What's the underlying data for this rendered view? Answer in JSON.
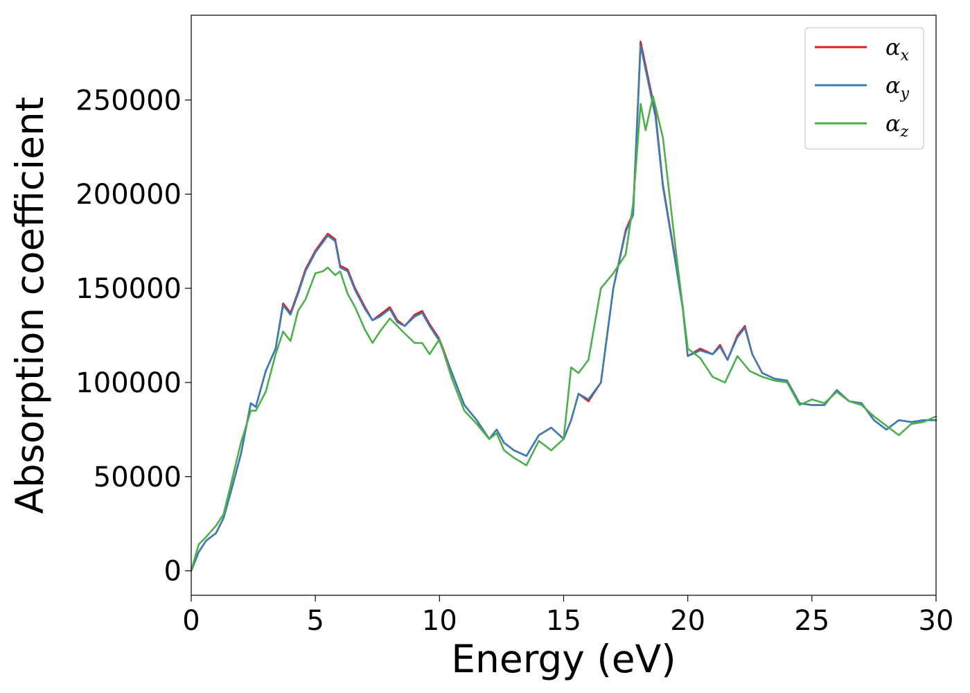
{
  "chart_data": {
    "type": "line",
    "xlabel": "Energy (eV)",
    "ylabel": "Absorption coefficient",
    "xlim": [
      0,
      30
    ],
    "ylim": [
      -13000,
      295000
    ],
    "xticks": [
      0,
      5,
      10,
      15,
      20,
      25,
      30
    ],
    "yticks": [
      0,
      50000,
      100000,
      150000,
      200000,
      250000
    ],
    "grid": false,
    "legend_position": "top-right",
    "series": [
      {
        "name": "αx",
        "legend_base": "α",
        "legend_sub": "x",
        "color": "#e41a1c",
        "x": [
          0,
          0.3,
          0.6,
          1.0,
          1.3,
          1.6,
          2.0,
          2.4,
          2.6,
          3.0,
          3.4,
          3.7,
          4.0,
          4.3,
          4.6,
          5.0,
          5.5,
          5.8,
          6.0,
          6.3,
          6.6,
          7.0,
          7.3,
          7.6,
          8.0,
          8.3,
          8.6,
          9.0,
          9.3,
          9.6,
          10.0,
          10.5,
          11.0,
          11.5,
          12.0,
          12.3,
          12.6,
          13.0,
          13.5,
          14.0,
          14.5,
          15.0,
          15.3,
          15.6,
          16.0,
          16.5,
          17.0,
          17.5,
          17.8,
          18.1,
          18.4,
          18.7,
          19.0,
          19.5,
          19.8,
          20.0,
          20.5,
          21.0,
          21.3,
          21.6,
          22.0,
          22.3,
          22.6,
          23.0,
          23.5,
          24.0,
          24.5,
          25.0,
          25.5,
          26.0,
          26.5,
          27.0,
          27.5,
          28.0,
          28.5,
          29.0,
          29.5,
          30.0
        ],
        "y": [
          0,
          10000,
          16000,
          20000,
          28000,
          42000,
          62000,
          89000,
          87000,
          106000,
          118000,
          142000,
          137000,
          148000,
          160000,
          170000,
          179000,
          176000,
          162000,
          160000,
          150000,
          140000,
          133000,
          136000,
          140000,
          133000,
          130000,
          136000,
          138000,
          131000,
          123000,
          105000,
          88000,
          80000,
          70000,
          75000,
          68000,
          64000,
          61000,
          72000,
          76000,
          70000,
          80000,
          94000,
          90000,
          100000,
          150000,
          181000,
          190000,
          281000,
          262000,
          243000,
          205000,
          165000,
          140000,
          114000,
          118000,
          115000,
          120000,
          112000,
          125000,
          130000,
          115000,
          105000,
          102000,
          101000,
          89000,
          88000,
          88000,
          96000,
          90000,
          89000,
          80000,
          75000,
          80000,
          79000,
          80000,
          80000
        ]
      },
      {
        "name": "αy",
        "legend_base": "α",
        "legend_sub": "y",
        "color": "#377eb8",
        "x": [
          0,
          0.3,
          0.6,
          1.0,
          1.3,
          1.6,
          2.0,
          2.4,
          2.6,
          3.0,
          3.4,
          3.7,
          4.0,
          4.3,
          4.6,
          5.0,
          5.5,
          5.8,
          6.0,
          6.3,
          6.6,
          7.0,
          7.3,
          7.6,
          8.0,
          8.3,
          8.6,
          9.0,
          9.3,
          9.6,
          10.0,
          10.5,
          11.0,
          11.5,
          12.0,
          12.3,
          12.6,
          13.0,
          13.5,
          14.0,
          14.5,
          15.0,
          15.3,
          15.6,
          16.0,
          16.5,
          17.0,
          17.5,
          17.8,
          18.1,
          18.4,
          18.7,
          19.0,
          19.5,
          19.8,
          20.0,
          20.5,
          21.0,
          21.3,
          21.6,
          22.0,
          22.3,
          22.6,
          23.0,
          23.5,
          24.0,
          24.5,
          25.0,
          25.5,
          26.0,
          26.5,
          27.0,
          27.5,
          28.0,
          28.5,
          29.0,
          29.5,
          30.0
        ],
        "y": [
          0,
          10000,
          16000,
          20000,
          28000,
          42000,
          62000,
          89000,
          87000,
          106000,
          118000,
          141000,
          136000,
          147000,
          159000,
          169000,
          178000,
          175000,
          161000,
          159000,
          149000,
          139000,
          133000,
          135000,
          139000,
          132000,
          130000,
          135000,
          137000,
          130000,
          122000,
          105000,
          88000,
          80000,
          70000,
          75000,
          68000,
          64000,
          61000,
          72000,
          76000,
          70000,
          80000,
          94000,
          91000,
          100000,
          150000,
          180000,
          189000,
          279000,
          260000,
          241000,
          204000,
          164000,
          139000,
          114000,
          117000,
          115000,
          119000,
          112000,
          124000,
          129000,
          115000,
          105000,
          102000,
          101000,
          89000,
          88000,
          88000,
          96000,
          90000,
          89000,
          80000,
          75000,
          80000,
          79000,
          80000,
          80000
        ]
      },
      {
        "name": "αz",
        "legend_base": "α",
        "legend_sub": "z",
        "color": "#4daf4a",
        "x": [
          0,
          0.3,
          0.6,
          1.0,
          1.3,
          1.6,
          2.0,
          2.4,
          2.6,
          3.0,
          3.4,
          3.7,
          4.0,
          4.3,
          4.6,
          5.0,
          5.3,
          5.5,
          5.8,
          6.0,
          6.3,
          6.6,
          7.0,
          7.3,
          7.6,
          8.0,
          8.3,
          8.6,
          9.0,
          9.3,
          9.6,
          10.0,
          10.5,
          11.0,
          11.5,
          12.0,
          12.3,
          12.6,
          13.0,
          13.5,
          14.0,
          14.5,
          15.0,
          15.3,
          15.6,
          16.0,
          16.5,
          17.0,
          17.5,
          17.8,
          18.1,
          18.3,
          18.6,
          19.0,
          19.5,
          20.0,
          20.5,
          21.0,
          21.5,
          22.0,
          22.5,
          23.0,
          23.5,
          24.0,
          24.5,
          25.0,
          25.5,
          26.0,
          26.5,
          27.0,
          27.5,
          28.0,
          28.5,
          29.0,
          29.5,
          30.0
        ],
        "y": [
          0,
          14000,
          18000,
          24000,
          30000,
          46000,
          68000,
          85000,
          85000,
          95000,
          115000,
          127000,
          122000,
          138000,
          144000,
          158000,
          159000,
          161000,
          157000,
          159000,
          147000,
          140000,
          128000,
          121000,
          127000,
          134000,
          130000,
          126000,
          121000,
          121000,
          115000,
          123000,
          102000,
          85000,
          78000,
          70000,
          73000,
          64000,
          60000,
          56000,
          69000,
          64000,
          70000,
          108000,
          105000,
          112000,
          150000,
          158000,
          168000,
          195000,
          248000,
          234000,
          252000,
          230000,
          172000,
          118000,
          113000,
          103000,
          100000,
          114000,
          106000,
          103000,
          101000,
          100000,
          88000,
          91000,
          89000,
          95000,
          90000,
          88000,
          82000,
          77000,
          72000,
          78000,
          79000,
          82000
        ]
      }
    ]
  }
}
